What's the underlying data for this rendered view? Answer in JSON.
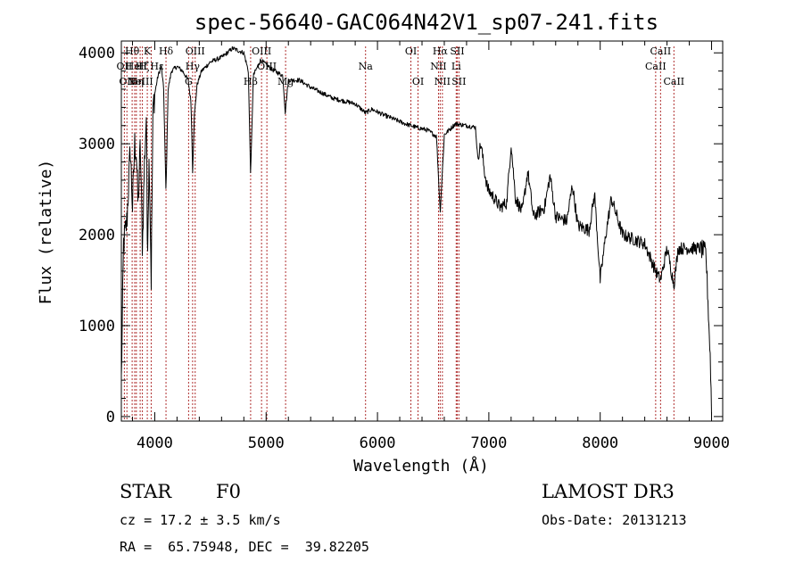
{
  "chart_data": {
    "type": "line",
    "title": "spec-56640-GAC064N42V1_sp07-241.fits",
    "xlabel": "Wavelength (Å)",
    "ylabel": "Flux (relative)",
    "xlim": [
      3700,
      9100
    ],
    "ylim": [
      -50,
      4130
    ],
    "x_ticks": [
      4000,
      5000,
      6000,
      7000,
      8000,
      9000
    ],
    "y_ticks": [
      0,
      1000,
      2000,
      3000,
      4000
    ],
    "line_color": "#000000",
    "marker_color": "#b03030",
    "spectrum_anchors": [
      [
        3700,
        400
      ],
      [
        3720,
        1900
      ],
      [
        3750,
        2150
      ],
      [
        3780,
        2950
      ],
      [
        3800,
        2300
      ],
      [
        3820,
        3000
      ],
      [
        3835,
        2900
      ],
      [
        3850,
        2300
      ],
      [
        3870,
        3000
      ],
      [
        3889,
        1850
      ],
      [
        3905,
        2700
      ],
      [
        3925,
        3350
      ],
      [
        3933,
        1800
      ],
      [
        3950,
        2900
      ],
      [
        3968,
        1500
      ],
      [
        3985,
        3400
      ],
      [
        4000,
        3550
      ],
      [
        4030,
        3750
      ],
      [
        4060,
        3850
      ],
      [
        4080,
        3600
      ],
      [
        4101,
        2450
      ],
      [
        4120,
        3600
      ],
      [
        4150,
        3800
      ],
      [
        4200,
        3850
      ],
      [
        4250,
        3800
      ],
      [
        4300,
        3700
      ],
      [
        4326,
        3450
      ],
      [
        4340,
        2700
      ],
      [
        4355,
        3300
      ],
      [
        4380,
        3650
      ],
      [
        4420,
        3800
      ],
      [
        4500,
        3900
      ],
      [
        4600,
        3950
      ],
      [
        4700,
        4050
      ],
      [
        4800,
        4000
      ],
      [
        4840,
        3800
      ],
      [
        4861,
        2650
      ],
      [
        4885,
        3750
      ],
      [
        4950,
        3920
      ],
      [
        5050,
        3820
      ],
      [
        5150,
        3750
      ],
      [
        5172,
        3350
      ],
      [
        5200,
        3700
      ],
      [
        5300,
        3700
      ],
      [
        5400,
        3620
      ],
      [
        5500,
        3560
      ],
      [
        5600,
        3500
      ],
      [
        5700,
        3470
      ],
      [
        5800,
        3440
      ],
      [
        5893,
        3340
      ],
      [
        5950,
        3380
      ],
      [
        6050,
        3320
      ],
      [
        6150,
        3270
      ],
      [
        6250,
        3220
      ],
      [
        6350,
        3180
      ],
      [
        6450,
        3150
      ],
      [
        6530,
        3080
      ],
      [
        6563,
        2250
      ],
      [
        6600,
        3100
      ],
      [
        6700,
        3220
      ],
      [
        6800,
        3200
      ],
      [
        6880,
        3180
      ],
      [
        6900,
        2850
      ],
      [
        6930,
        3000
      ],
      [
        6960,
        2700
      ],
      [
        6990,
        2500
      ],
      [
        7050,
        2400
      ],
      [
        7100,
        2300
      ],
      [
        7160,
        2350
      ],
      [
        7200,
        3000
      ],
      [
        7240,
        2400
      ],
      [
        7300,
        2250
      ],
      [
        7350,
        2700
      ],
      [
        7400,
        2200
      ],
      [
        7500,
        2300
      ],
      [
        7550,
        2650
      ],
      [
        7600,
        2200
      ],
      [
        7700,
        2150
      ],
      [
        7750,
        2550
      ],
      [
        7800,
        2100
      ],
      [
        7900,
        2050
      ],
      [
        7950,
        2450
      ],
      [
        8000,
        1500
      ],
      [
        8050,
        2000
      ],
      [
        8100,
        2400
      ],
      [
        8200,
        2000
      ],
      [
        8300,
        1950
      ],
      [
        8400,
        1900
      ],
      [
        8498,
        1600
      ],
      [
        8542,
        1500
      ],
      [
        8600,
        1850
      ],
      [
        8662,
        1450
      ],
      [
        8700,
        1850
      ],
      [
        8800,
        1850
      ],
      [
        8900,
        1850
      ],
      [
        8950,
        1800
      ],
      [
        8990,
        600
      ],
      [
        9000,
        50
      ]
    ],
    "line_markers": [
      {
        "wavelength": 3727,
        "labels": [
          "OII"
        ],
        "level": 1
      },
      {
        "wavelength": 3750,
        "labels": [
          "OII"
        ],
        "level": 2
      },
      {
        "wavelength": 3797,
        "labels": [
          "Hθ"
        ],
        "level": 0
      },
      {
        "wavelength": 3820,
        "labels": [
          "HeI"
        ],
        "level": 1
      },
      {
        "wavelength": 3835,
        "labels": [
          "Hη"
        ],
        "level": 2
      },
      {
        "wavelength": 3869,
        "labels": [
          "NeIII"
        ],
        "level": 2
      },
      {
        "wavelength": 3889,
        "labels": [
          "Hζ"
        ],
        "level": 1
      },
      {
        "wavelength": 3933,
        "labels": [
          "K"
        ],
        "level": 0
      },
      {
        "wavelength": 3968,
        "labels": [
          "H",
          "Hε"
        ],
        "level": 1
      },
      {
        "wavelength": 4101,
        "labels": [
          "Hδ"
        ],
        "level": 0
      },
      {
        "wavelength": 4304,
        "labels": [
          "G"
        ],
        "level": 2
      },
      {
        "wavelength": 4340,
        "labels": [
          "Hγ"
        ],
        "level": 1
      },
      {
        "wavelength": 4363,
        "labels": [
          "OIII"
        ],
        "level": 0
      },
      {
        "wavelength": 4861,
        "labels": [
          "Hβ"
        ],
        "level": 2
      },
      {
        "wavelength": 4959,
        "labels": [
          "OIII"
        ],
        "level": 0
      },
      {
        "wavelength": 5007,
        "labels": [
          "OIII"
        ],
        "level": 1
      },
      {
        "wavelength": 5175,
        "labels": [
          "Mg"
        ],
        "level": 2
      },
      {
        "wavelength": 5893,
        "labels": [
          "Na"
        ],
        "level": 1
      },
      {
        "wavelength": 6300,
        "labels": [
          "OI"
        ],
        "level": 0
      },
      {
        "wavelength": 6364,
        "labels": [
          "OI"
        ],
        "level": 2
      },
      {
        "wavelength": 6548,
        "labels": [
          "NII"
        ],
        "level": 1
      },
      {
        "wavelength": 6563,
        "labels": [
          "Hα"
        ],
        "level": 0
      },
      {
        "wavelength": 6583,
        "labels": [
          "NII"
        ],
        "level": 2
      },
      {
        "wavelength": 6707,
        "labels": [
          "Li"
        ],
        "level": 1
      },
      {
        "wavelength": 6716,
        "labels": [
          "SII"
        ],
        "level": 0
      },
      {
        "wavelength": 6731,
        "labels": [
          "SII"
        ],
        "level": 2
      },
      {
        "wavelength": 8498,
        "labels": [
          "CaII"
        ],
        "level": 1
      },
      {
        "wavelength": 8542,
        "labels": [
          "CaII"
        ],
        "level": 0
      },
      {
        "wavelength": 8662,
        "labels": [
          "CaII"
        ],
        "level": 2
      }
    ]
  },
  "info": {
    "object_class": "STAR",
    "subclass": "F0",
    "survey": "LAMOST DR3",
    "redshift": "cz = 17.2 ± 3.5 km/s",
    "obs_date": "Obs-Date: 20131213",
    "coords": "RA =  65.75948, DEC =  39.82205"
  }
}
